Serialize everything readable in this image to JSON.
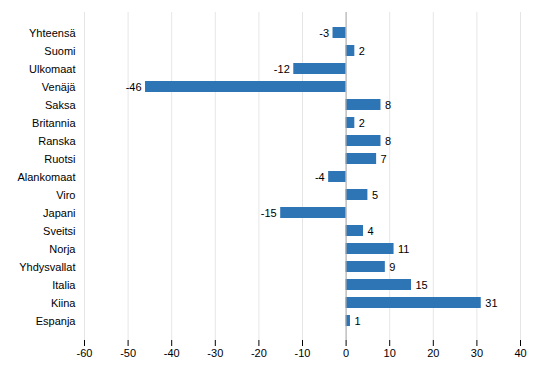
{
  "chart_data": {
    "type": "bar",
    "orientation": "horizontal",
    "categories": [
      "Yhteensä",
      "Suomi",
      "Ulkomaat",
      "Venäjä",
      "Saksa",
      "Britannia",
      "Ranska",
      "Ruotsi",
      "Alankomaat",
      "Viro",
      "Japani",
      "Sveitsi",
      "Norja",
      "Yhdysvallat",
      "Italia",
      "Kiina",
      "Espanja"
    ],
    "values": [
      -3,
      2,
      -12,
      -46,
      8,
      2,
      8,
      7,
      -4,
      5,
      -15,
      4,
      11,
      9,
      15,
      31,
      1
    ],
    "color": "#2E75B6",
    "xlim": [
      -60,
      40
    ],
    "xticks": [
      -60,
      -50,
      -40,
      -30,
      -20,
      -10,
      0,
      10,
      20,
      30,
      40
    ],
    "grid": true,
    "data_labels": true
  }
}
